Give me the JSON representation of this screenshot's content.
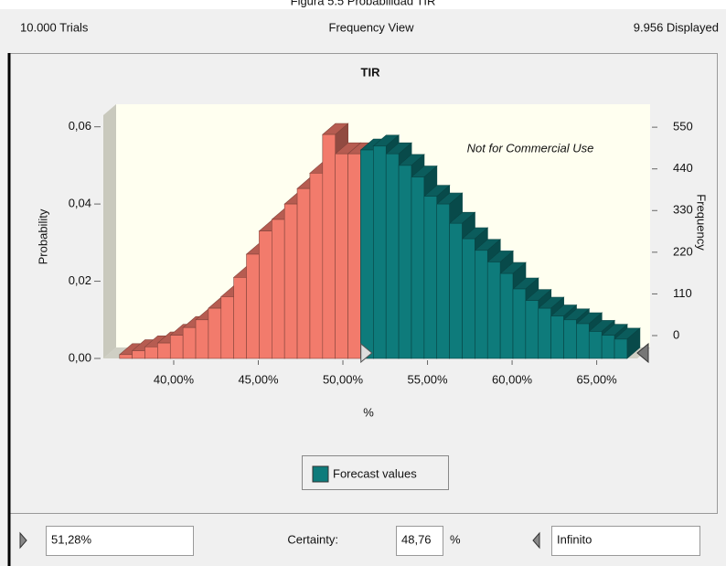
{
  "caption": "Figura 5.5 Probabilidad TIR",
  "header": {
    "trials": "10.000 Trials",
    "view": "Frequency View",
    "displayed": "9.956 Displayed"
  },
  "chart_data": {
    "type": "histogram",
    "title": "TIR",
    "y_label": "Probability",
    "y2_label": "Frequency",
    "x_label": "%",
    "watermark": "Not for Commercial Use",
    "legend": "Forecast values",
    "bins": [
      36.8,
      37.55,
      38.3,
      39.05,
      39.8,
      40.55,
      41.3,
      42.05,
      42.8,
      43.55,
      44.3,
      45.05,
      45.8,
      46.55,
      47.3,
      48.05,
      48.8,
      49.55,
      50.3,
      51.05,
      51.8,
      52.55,
      53.3,
      54.05,
      54.8,
      55.55,
      56.3,
      57.05,
      57.8,
      58.55,
      59.3,
      60.05,
      60.8,
      61.55,
      62.3,
      63.05,
      63.8,
      64.55,
      65.3,
      66.05,
      66.8
    ],
    "values": [
      0.001,
      0.002,
      0.003,
      0.004,
      0.006,
      0.008,
      0.01,
      0.013,
      0.016,
      0.021,
      0.027,
      0.033,
      0.036,
      0.04,
      0.044,
      0.048,
      0.058,
      0.053,
      0.053,
      0.054,
      0.055,
      0.053,
      0.05,
      0.047,
      0.042,
      0.04,
      0.035,
      0.031,
      0.028,
      0.025,
      0.022,
      0.018,
      0.015,
      0.013,
      0.011,
      0.01,
      0.009,
      0.007,
      0.006,
      0.005
    ],
    "xlim": [
      35.84,
      67.4
    ],
    "xticks": [
      {
        "value": 40,
        "label": "40,00%"
      },
      {
        "value": 45,
        "label": "45,00%"
      },
      {
        "value": 50,
        "label": "50,00%"
      },
      {
        "value": 55,
        "label": "55,00%"
      },
      {
        "value": 60,
        "label": "60,00%"
      },
      {
        "value": 65,
        "label": "65,00%"
      }
    ],
    "ylim": [
      0,
      0.063
    ],
    "yticks": [
      {
        "value": 0,
        "label": "0,00"
      },
      {
        "value": 0.02,
        "label": "0,02"
      },
      {
        "value": 0.04,
        "label": "0,04"
      },
      {
        "value": 0.06,
        "label": "0,06"
      }
    ],
    "y2lim": [
      0,
      642
    ],
    "y2ticks": [
      0,
      110,
      220,
      330,
      440,
      550
    ],
    "colors": {
      "below": "#f27b6c",
      "above": "#0e7b7b"
    },
    "threshold": {
      "value": 51.28,
      "label": "51,28%"
    }
  },
  "footer": {
    "certainty_label": "Certainty:",
    "certainty": "48,76",
    "unit": "%",
    "upper": "Infinito"
  }
}
